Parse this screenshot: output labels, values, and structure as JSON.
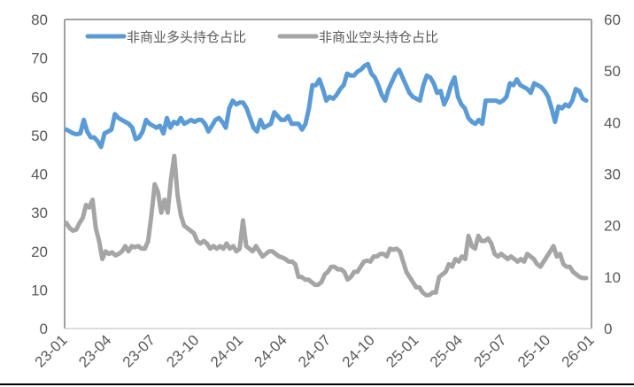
{
  "chart_data": {
    "type": "line",
    "title": "",
    "xlabel": "",
    "ylabel": "",
    "ylabel_right": "",
    "x_tick_labels": [
      "23-01",
      "23-04",
      "23-07",
      "23-10",
      "24-01",
      "24-04",
      "24-07",
      "24-10",
      "25-01",
      "25-04",
      "25-07",
      "25-10",
      "26-01"
    ],
    "ylim": [
      0,
      80
    ],
    "ylim_right": [
      0,
      60
    ],
    "y_ticks": [
      0,
      10,
      20,
      30,
      40,
      50,
      60,
      70,
      80
    ],
    "y_ticks_right": [
      0,
      10,
      20,
      30,
      40,
      50,
      60
    ],
    "grid": false,
    "legend_position": "top-left inside",
    "series": [
      {
        "name": "非商业多头持仓占比",
        "axis": "left",
        "color": "#5b9bd5",
        "values": [
          51.5,
          51,
          50.5,
          50.3,
          50.5,
          54,
          51,
          49.5,
          49.5,
          48.5,
          47,
          50.5,
          51,
          51.5,
          55.5,
          54.5,
          54,
          53.5,
          53,
          52,
          49,
          49.5,
          51,
          54,
          53,
          52.5,
          52,
          52.5,
          50.5,
          54.5,
          52,
          53.5,
          53,
          54.5,
          53,
          53.5,
          54,
          53.5,
          54,
          54,
          53,
          51,
          52.5,
          54,
          54.5,
          53.5,
          52,
          57,
          59,
          58,
          58.5,
          58.5,
          57,
          54.5,
          52,
          51,
          54,
          52,
          52.5,
          53,
          56,
          55,
          54,
          54,
          55,
          53,
          53,
          53,
          51.5,
          53,
          57,
          63,
          63,
          64.5,
          62,
          59,
          60,
          59.5,
          60.5,
          62,
          63,
          66,
          65.5,
          65.5,
          66.5,
          67,
          68,
          68.5,
          66,
          65,
          63,
          60.5,
          59,
          62,
          64,
          66,
          67,
          65,
          63,
          61,
          60,
          59.5,
          59,
          63,
          65.5,
          65,
          63.5,
          61,
          61.5,
          58,
          60,
          63,
          65,
          60,
          58,
          57,
          54.5,
          53.5,
          53,
          54,
          53,
          59,
          59,
          59,
          59,
          58.5,
          59,
          60,
          63.5,
          63,
          64.5,
          63,
          62.5,
          62,
          61,
          63.5,
          63,
          62.5,
          61.5,
          60,
          57,
          53.5,
          57.5,
          57,
          58,
          57.5,
          59,
          62,
          61.5,
          59.5,
          59
        ]
      },
      {
        "name": "非商业空头持仓占比",
        "axis": "right",
        "color": "#a5a5a5",
        "values": [
          20.5,
          19.5,
          19,
          19.2,
          20.5,
          21.5,
          24,
          23.5,
          25,
          19.5,
          17,
          13.5,
          15,
          14.5,
          14.8,
          14.2,
          14.5,
          15,
          16,
          15,
          16,
          15.8,
          16,
          15.5,
          15.5,
          17,
          22,
          28,
          26.5,
          22.5,
          25,
          22.5,
          29,
          33.5,
          26,
          22,
          20,
          19.5,
          19,
          18.5,
          17,
          16.5,
          17,
          16.5,
          15.5,
          16,
          15.5,
          16,
          15.5,
          16.5,
          15.5,
          16,
          15,
          15.5,
          21,
          16,
          15.5,
          15,
          16,
          15,
          14,
          14.5,
          15,
          15,
          14.5,
          14,
          13.8,
          13.5,
          13,
          13,
          12.5,
          10,
          10,
          9.5,
          9.5,
          9,
          8.5,
          8.5,
          9,
          10.5,
          11,
          12,
          12,
          11.5,
          11.5,
          11,
          9.5,
          10,
          11,
          11,
          12,
          13,
          13.2,
          13,
          14,
          14,
          14.5,
          14.5,
          14,
          15.5,
          15.3,
          15.5,
          15,
          13,
          11,
          10,
          9,
          8,
          8,
          7,
          6.5,
          6.5,
          7,
          7,
          10,
          10.5,
          11,
          12.5,
          12,
          13.5,
          13,
          14,
          13.5,
          18,
          16,
          15.5,
          18,
          17,
          17,
          17.5,
          16.5,
          14.5,
          14,
          14.5,
          14,
          13.5,
          14,
          13.5,
          13,
          13.5,
          13,
          14.5,
          14,
          13.5,
          12.5,
          12,
          13,
          14,
          15,
          16,
          14,
          14.5,
          12.5,
          12,
          12,
          11,
          10.5,
          10,
          9.8,
          9.8
        ]
      }
    ]
  },
  "legend": {
    "item_1": "非商业多头持仓占比",
    "item_2": "非商业空头持仓占比"
  }
}
